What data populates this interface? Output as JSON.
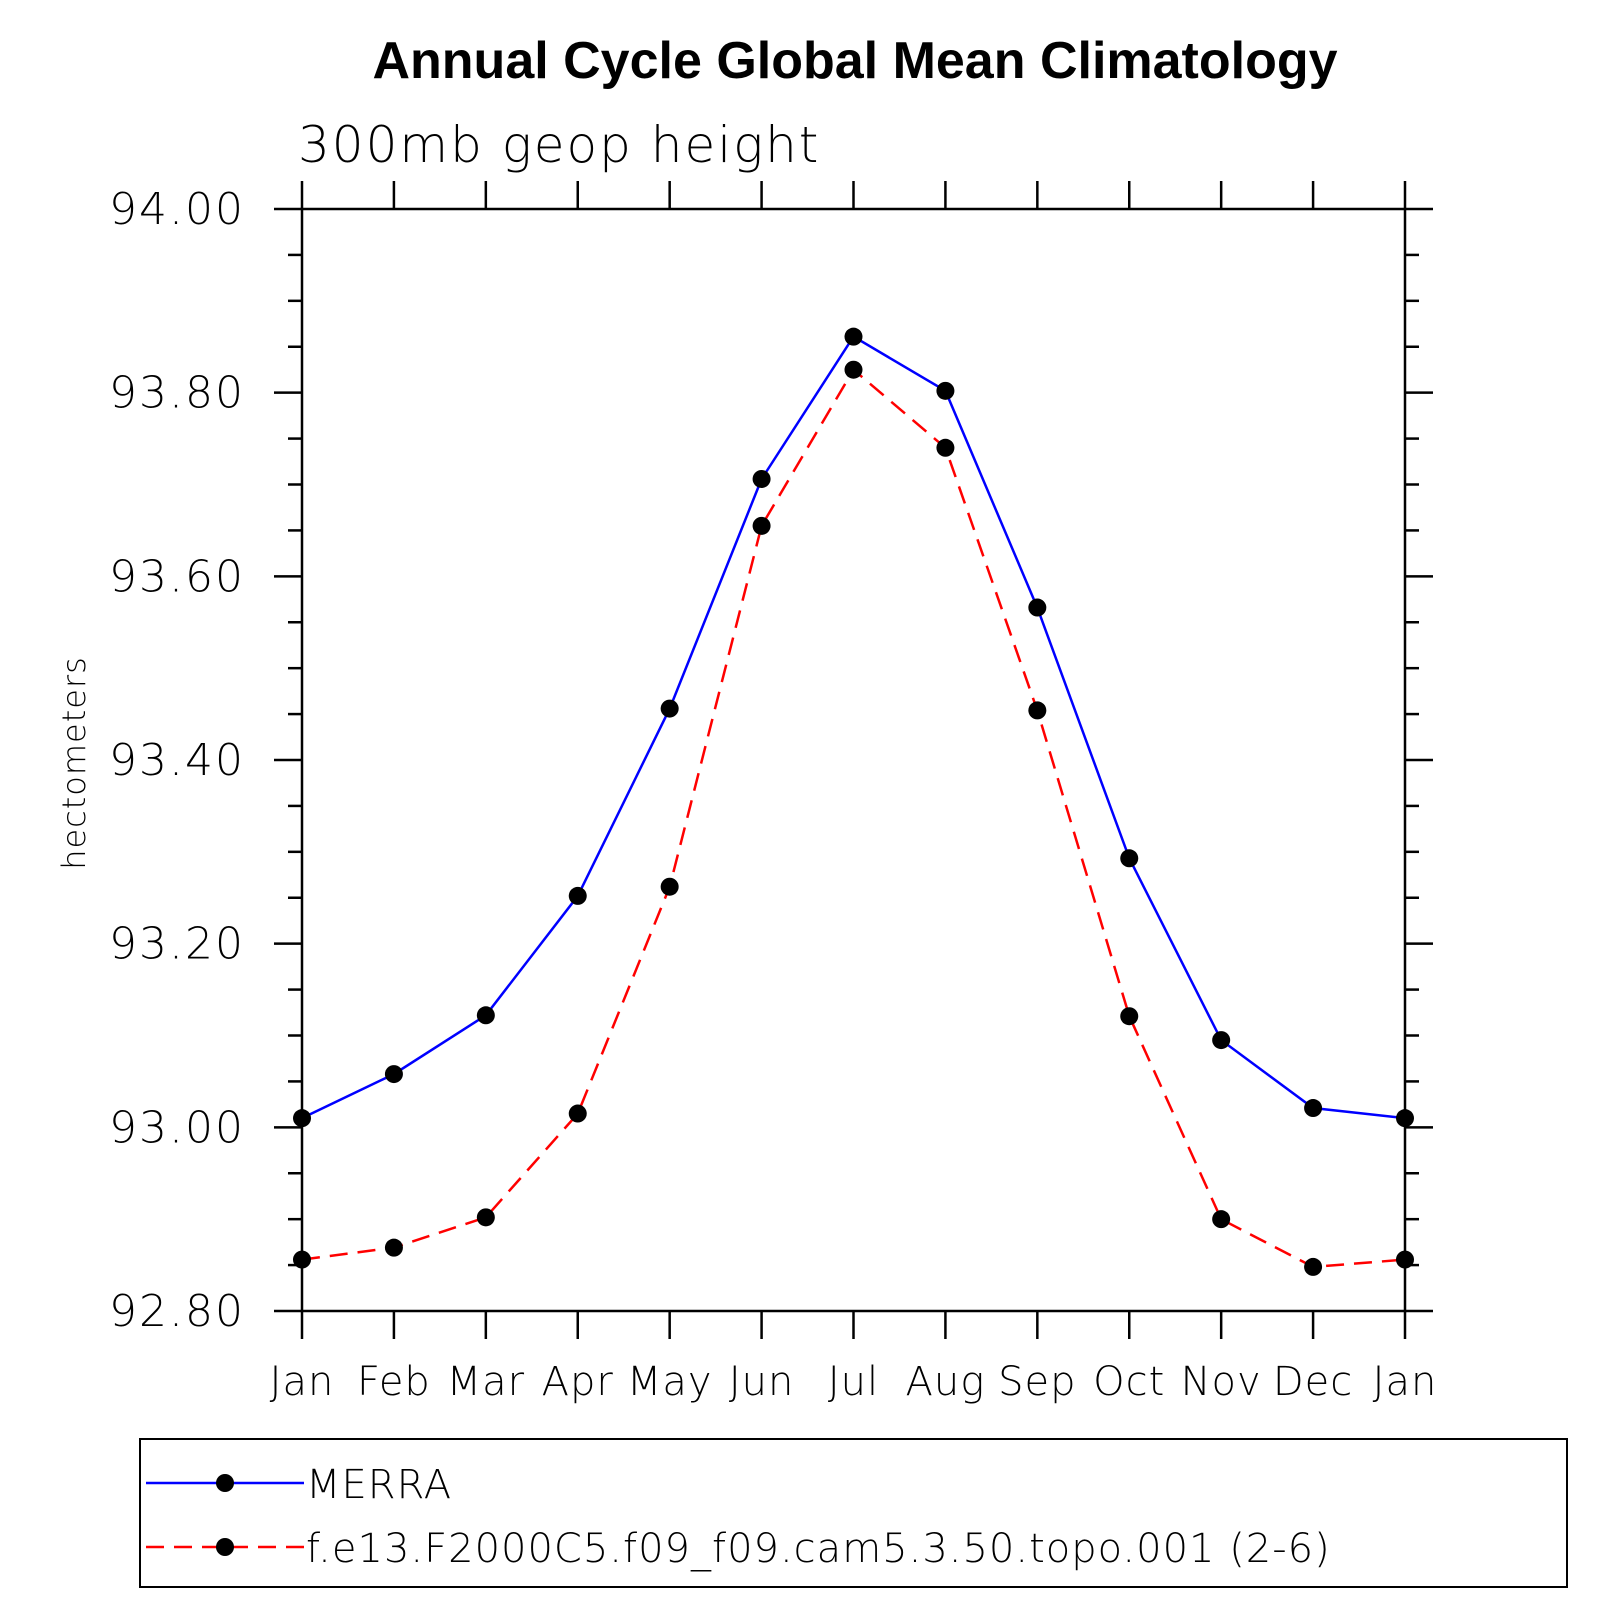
{
  "chart_data": {
    "type": "line",
    "title": "Annual Cycle Global Mean Climatology",
    "subtitle": "300mb geop height",
    "xlabel": "",
    "ylabel": "hectometers",
    "categories": [
      "Jan",
      "Feb",
      "Mar",
      "Apr",
      "May",
      "Jun",
      "Jul",
      "Aug",
      "Sep",
      "Oct",
      "Nov",
      "Dec",
      "Jan"
    ],
    "ylim": [
      92.8,
      94.0
    ],
    "yticks": [
      "92.80",
      "93.00",
      "93.20",
      "93.40",
      "93.60",
      "93.80",
      "94.00"
    ],
    "grid": false,
    "legend_position": "bottom",
    "series": [
      {
        "name": "MERRA",
        "color": "#0000ff",
        "style": "solid",
        "marker": "filled-circle",
        "values": [
          93.01,
          93.058,
          93.122,
          93.252,
          93.456,
          93.706,
          93.861,
          93.802,
          93.566,
          93.293,
          93.095,
          93.021,
          93.01
        ]
      },
      {
        "name": "f.e13.F2000C5.f09_f09.cam5.3.50.topo.001 (2-6)",
        "color": "#ff0000",
        "style": "dashed",
        "marker": "filled-circle",
        "values": [
          92.856,
          92.869,
          92.902,
          93.015,
          93.262,
          93.655,
          93.825,
          93.74,
          93.454,
          93.121,
          92.9,
          92.848,
          92.856
        ]
      }
    ]
  }
}
